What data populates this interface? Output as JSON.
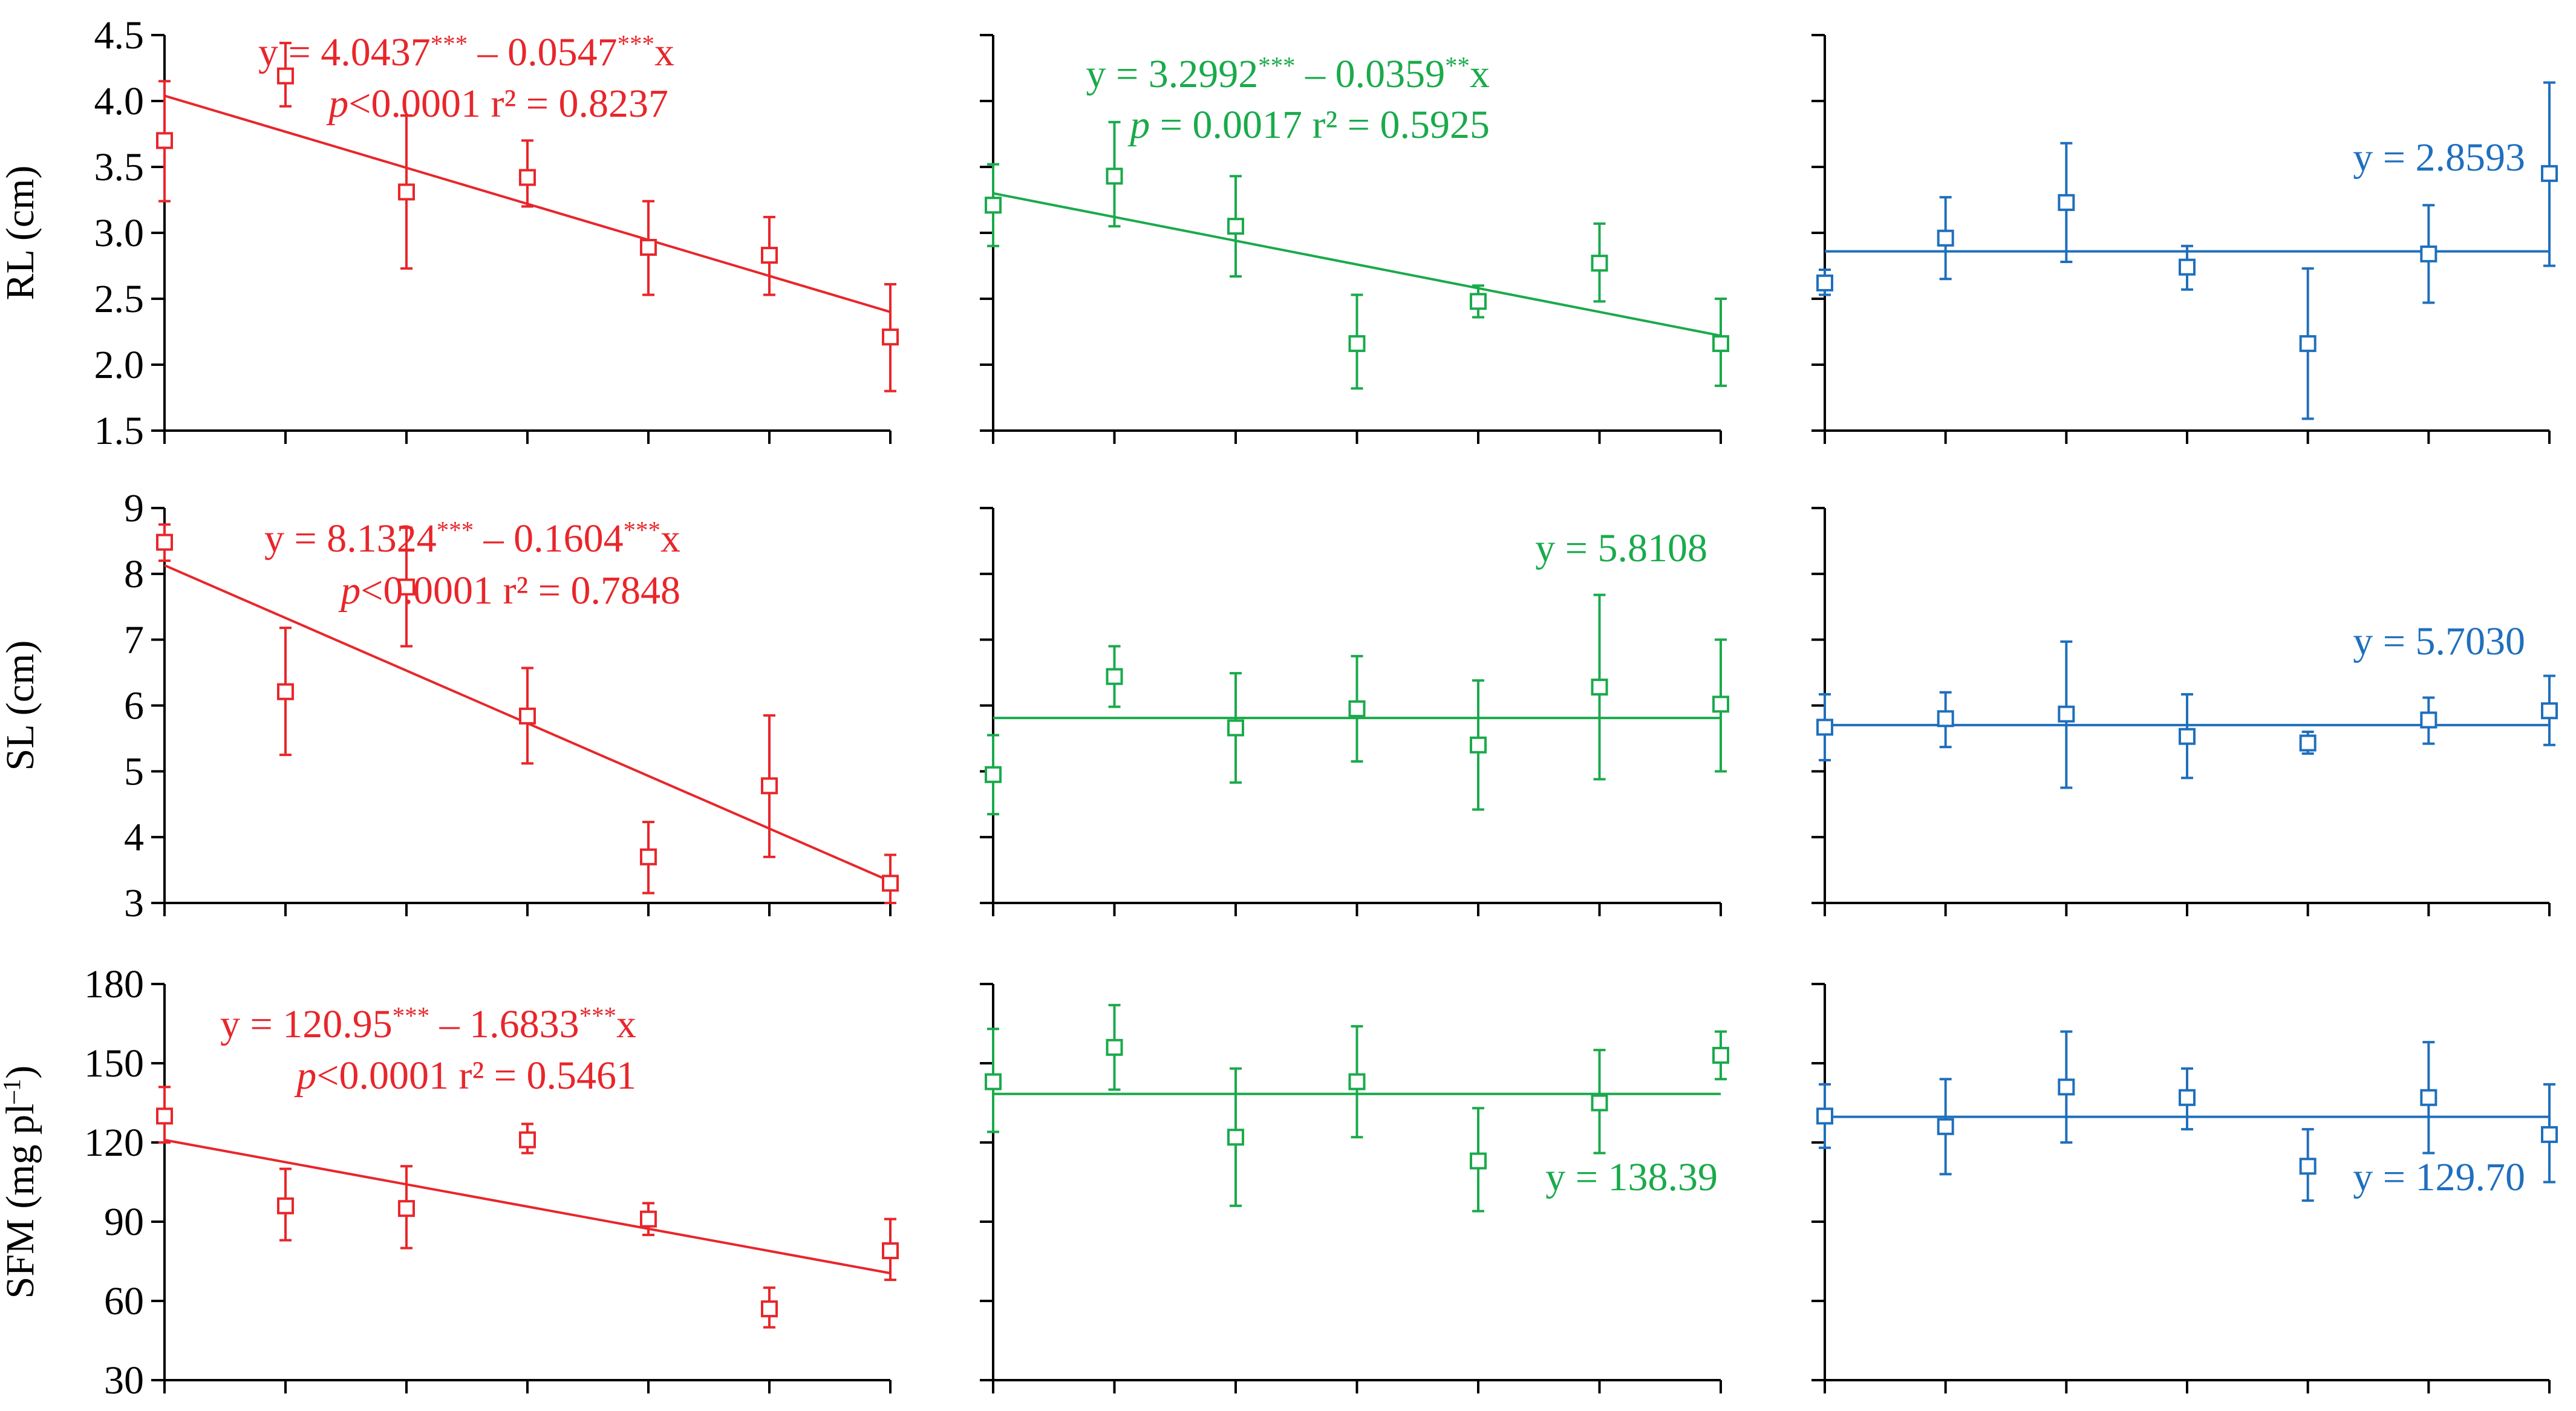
{
  "chart_data": [
    {
      "type": "scatter",
      "row": 0,
      "col": 0,
      "ylabel": "RL (cm)",
      "yticks": [
        "1.5",
        "2.0",
        "2.5",
        "3.0",
        "3.5",
        "4.0",
        "4.5"
      ],
      "ylim": [
        1.5,
        4.5
      ],
      "color": "#e8262b",
      "points": [
        {
          "x": 0,
          "y": 3.7,
          "lo": 3.24,
          "hi": 4.15
        },
        {
          "x": 1,
          "y": 4.19,
          "lo": 3.96,
          "hi": 4.44
        },
        {
          "x": 2,
          "y": 3.31,
          "lo": 2.73,
          "hi": 3.89
        },
        {
          "x": 3,
          "y": 3.42,
          "lo": 3.2,
          "hi": 3.7
        },
        {
          "x": 4,
          "y": 2.89,
          "lo": 2.53,
          "hi": 3.24
        },
        {
          "x": 5,
          "y": 2.83,
          "lo": 2.53,
          "hi": 3.12
        },
        {
          "x": 6,
          "y": 2.21,
          "lo": 1.8,
          "hi": 2.61
        }
      ],
      "fit": {
        "y0": 4.04,
        "y1": 2.4
      },
      "eq_line1": {
        "a": "y = 4.0437",
        "s1": "***",
        "b": " – 0.0547",
        "s2": "***",
        "c": "x"
      },
      "eq_line2": {
        "p_symbol": "p",
        "p_value": "<0.0001",
        "r2": "r² = 0.8237"
      }
    },
    {
      "type": "scatter",
      "row": 0,
      "col": 1,
      "ylim": [
        1.5,
        4.5
      ],
      "color": "#1aaa4b",
      "points": [
        {
          "x": 0,
          "y": 3.21,
          "lo": 2.9,
          "hi": 3.52
        },
        {
          "x": 1,
          "y": 3.43,
          "lo": 3.05,
          "hi": 3.84
        },
        {
          "x": 2,
          "y": 3.05,
          "lo": 2.67,
          "hi": 3.43
        },
        {
          "x": 3,
          "y": 2.16,
          "lo": 1.82,
          "hi": 2.53
        },
        {
          "x": 4,
          "y": 2.48,
          "lo": 2.36,
          "hi": 2.6
        },
        {
          "x": 5,
          "y": 2.77,
          "lo": 2.48,
          "hi": 3.07
        },
        {
          "x": 6,
          "y": 2.16,
          "lo": 1.84,
          "hi": 2.5
        }
      ],
      "fit": {
        "y0": 3.3,
        "y1": 2.22
      },
      "eq_line1": {
        "a": "y = 3.2992",
        "s1": "***",
        "b": " – 0.0359",
        "s2": "**",
        "c": "x"
      },
      "eq_line2": {
        "p_symbol": "p",
        "p_value": " = 0.0017",
        "r2": "r² = 0.5925"
      }
    },
    {
      "type": "scatter",
      "row": 0,
      "col": 2,
      "ylim": [
        1.5,
        4.5
      ],
      "color": "#1f6fbd",
      "points": [
        {
          "x": 0,
          "y": 2.62,
          "lo": 2.53,
          "hi": 2.72
        },
        {
          "x": 1,
          "y": 2.96,
          "lo": 2.65,
          "hi": 3.27
        },
        {
          "x": 2,
          "y": 3.23,
          "lo": 2.78,
          "hi": 3.68
        },
        {
          "x": 3,
          "y": 2.74,
          "lo": 2.57,
          "hi": 2.9
        },
        {
          "x": 4,
          "y": 2.16,
          "lo": 1.59,
          "hi": 2.73
        },
        {
          "x": 5,
          "y": 2.84,
          "lo": 2.47,
          "hi": 3.21
        },
        {
          "x": 6,
          "y": 3.45,
          "lo": 2.75,
          "hi": 4.14
        }
      ],
      "fit": {
        "y0": 2.8593,
        "y1": 2.8593
      },
      "eq_line1": {
        "a": "y = 2.8593"
      }
    },
    {
      "type": "scatter",
      "row": 1,
      "col": 0,
      "ylabel": "SL (cm)",
      "yticks": [
        "3",
        "4",
        "5",
        "6",
        "7",
        "8",
        "9"
      ],
      "ylim": [
        3,
        9
      ],
      "color": "#e8262b",
      "points": [
        {
          "x": 0,
          "y": 8.48,
          "lo": 8.2,
          "hi": 8.75
        },
        {
          "x": 1,
          "y": 6.21,
          "lo": 5.25,
          "hi": 7.18
        },
        {
          "x": 2,
          "y": 7.8,
          "lo": 6.9,
          "hi": 8.7
        },
        {
          "x": 3,
          "y": 5.84,
          "lo": 5.12,
          "hi": 6.57
        },
        {
          "x": 4,
          "y": 3.7,
          "lo": 3.15,
          "hi": 4.23
        },
        {
          "x": 5,
          "y": 4.78,
          "lo": 3.7,
          "hi": 5.85
        },
        {
          "x": 6,
          "y": 3.3,
          "lo": 3.0,
          "hi": 3.73
        }
      ],
      "fit": {
        "y0": 8.13,
        "y1": 3.33
      },
      "eq_line1": {
        "a": "y = 8.1324",
        "s1": "***",
        "b": " – 0.1604",
        "s2": "***",
        "c": "x"
      },
      "eq_line2": {
        "p_symbol": "p",
        "p_value": "<0.0001",
        "r2": "r² = 0.7848"
      }
    },
    {
      "type": "scatter",
      "row": 1,
      "col": 1,
      "ylim": [
        3,
        9
      ],
      "color": "#1aaa4b",
      "points": [
        {
          "x": 0,
          "y": 4.95,
          "lo": 4.35,
          "hi": 5.55
        },
        {
          "x": 1,
          "y": 6.44,
          "lo": 5.98,
          "hi": 6.9
        },
        {
          "x": 2,
          "y": 5.66,
          "lo": 4.83,
          "hi": 6.49
        },
        {
          "x": 3,
          "y": 5.95,
          "lo": 5.15,
          "hi": 6.75
        },
        {
          "x": 4,
          "y": 5.4,
          "lo": 4.42,
          "hi": 6.38
        },
        {
          "x": 5,
          "y": 6.28,
          "lo": 4.88,
          "hi": 7.68
        },
        {
          "x": 6,
          "y": 6.02,
          "lo": 5.0,
          "hi": 7.0
        }
      ],
      "fit": {
        "y0": 5.8108,
        "y1": 5.8108
      },
      "eq_line1": {
        "a": "y = 5.8108"
      }
    },
    {
      "type": "scatter",
      "row": 1,
      "col": 2,
      "ylim": [
        3,
        9
      ],
      "color": "#1f6fbd",
      "points": [
        {
          "x": 0,
          "y": 5.67,
          "lo": 5.17,
          "hi": 6.17
        },
        {
          "x": 1,
          "y": 5.8,
          "lo": 5.37,
          "hi": 6.2
        },
        {
          "x": 2,
          "y": 5.87,
          "lo": 4.75,
          "hi": 6.97
        },
        {
          "x": 3,
          "y": 5.53,
          "lo": 4.9,
          "hi": 6.17
        },
        {
          "x": 4,
          "y": 5.43,
          "lo": 5.27,
          "hi": 5.6
        },
        {
          "x": 5,
          "y": 5.78,
          "lo": 5.42,
          "hi": 6.12
        },
        {
          "x": 6,
          "y": 5.92,
          "lo": 5.4,
          "hi": 6.45
        }
      ],
      "fit": {
        "y0": 5.703,
        "y1": 5.703
      },
      "eq_line1": {
        "a": "y = 5.7030"
      }
    },
    {
      "type": "scatter",
      "row": 2,
      "col": 0,
      "ylabel": "SFM (mg pl",
      "ylabel_sup": "–1",
      "ylabel_end": ")",
      "yticks": [
        "30",
        "60",
        "90",
        "120",
        "150",
        "180"
      ],
      "ylim": [
        30,
        180
      ],
      "color": "#e8262b",
      "points": [
        {
          "x": 0,
          "y": 130,
          "lo": 120,
          "hi": 141
        },
        {
          "x": 1,
          "y": 96,
          "lo": 83,
          "hi": 110
        },
        {
          "x": 2,
          "y": 95,
          "lo": 80,
          "hi": 111
        },
        {
          "x": 3,
          "y": 121,
          "lo": 116,
          "hi": 127
        },
        {
          "x": 4,
          "y": 91,
          "lo": 85,
          "hi": 97
        },
        {
          "x": 5,
          "y": 57,
          "lo": 50,
          "hi": 65
        },
        {
          "x": 6,
          "y": 79,
          "lo": 68,
          "hi": 91
        }
      ],
      "fit": {
        "y0": 120.95,
        "y1": 70.5
      },
      "eq_line1": {
        "a": "y = 120.95",
        "s1": "***",
        "b": " – 1.6833",
        "s2": "***",
        "c": "x"
      },
      "eq_line2": {
        "p_symbol": "p",
        "p_value": "<0.0001",
        "r2": "r² = 0.5461"
      }
    },
    {
      "type": "scatter",
      "row": 2,
      "col": 1,
      "ylim": [
        30,
        180
      ],
      "color": "#1aaa4b",
      "points": [
        {
          "x": 0,
          "y": 143,
          "lo": 124,
          "hi": 163
        },
        {
          "x": 1,
          "y": 156,
          "lo": 140,
          "hi": 172
        },
        {
          "x": 2,
          "y": 122,
          "lo": 96,
          "hi": 148
        },
        {
          "x": 3,
          "y": 143,
          "lo": 122,
          "hi": 164
        },
        {
          "x": 4,
          "y": 113,
          "lo": 94,
          "hi": 133
        },
        {
          "x": 5,
          "y": 135,
          "lo": 116,
          "hi": 155
        },
        {
          "x": 6,
          "y": 153,
          "lo": 144,
          "hi": 162
        }
      ],
      "fit": {
        "y0": 138.39,
        "y1": 138.39
      },
      "eq_line1": {
        "a": "y = 138.39"
      }
    },
    {
      "type": "scatter",
      "row": 2,
      "col": 2,
      "ylim": [
        30,
        180
      ],
      "color": "#1f6fbd",
      "points": [
        {
          "x": 0,
          "y": 130,
          "lo": 118,
          "hi": 142
        },
        {
          "x": 1,
          "y": 126,
          "lo": 108,
          "hi": 144
        },
        {
          "x": 2,
          "y": 141,
          "lo": 120,
          "hi": 162
        },
        {
          "x": 3,
          "y": 137,
          "lo": 125,
          "hi": 148
        },
        {
          "x": 4,
          "y": 111,
          "lo": 98,
          "hi": 125
        },
        {
          "x": 5,
          "y": 137,
          "lo": 116,
          "hi": 158
        },
        {
          "x": 6,
          "y": 123,
          "lo": 105,
          "hi": 142
        }
      ],
      "fit": {
        "y0": 129.7,
        "y1": 129.7
      },
      "eq_line1": {
        "a": "y = 129.70"
      }
    }
  ]
}
